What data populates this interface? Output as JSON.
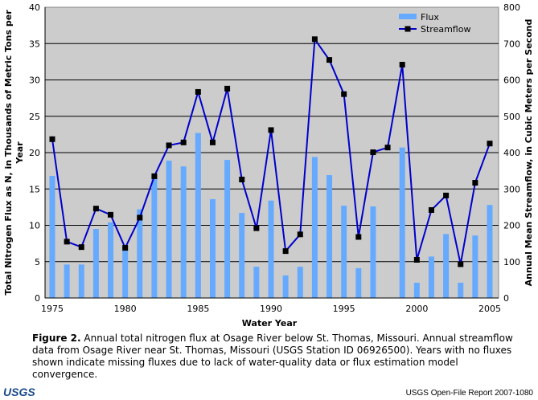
{
  "chart_data": {
    "type": "bar+line",
    "title": "",
    "xlabel": "Water Year",
    "ylabel": "Total Nitrogen Flux as N, in Thousands of Metric Tons per Year",
    "ylabel_right": "Annual Mean Streamflow, in Cubic Meters per Second",
    "ylim": [
      0,
      40
    ],
    "ylim_right": [
      0,
      800
    ],
    "yticks": [
      "0",
      "5",
      "10",
      "15",
      "20",
      "25",
      "30",
      "35",
      "40"
    ],
    "yticks_right": [
      "0",
      "100",
      "200",
      "300",
      "400",
      "500",
      "600",
      "700",
      "800"
    ],
    "xticks": [
      "1975",
      "1980",
      "1985",
      "1990",
      "1995",
      "2000",
      "2005"
    ],
    "legend": {
      "placement": "top-right",
      "entries": [
        "Flux",
        "Streamflow"
      ]
    },
    "x": [
      1975,
      1976,
      1977,
      1978,
      1979,
      1980,
      1981,
      1982,
      1983,
      1984,
      1985,
      1986,
      1987,
      1988,
      1989,
      1990,
      1991,
      1992,
      1993,
      1994,
      1995,
      1996,
      1997,
      1998,
      1999,
      2000,
      2001,
      2002,
      2003,
      2004,
      2005
    ],
    "series": [
      {
        "name": "Flux",
        "axis": "left",
        "type": "bar",
        "color": "#66aaff",
        "values": [
          16.8,
          4.6,
          4.6,
          9.5,
          10.4,
          7.1,
          12.2,
          16.6,
          18.9,
          18.1,
          22.7,
          13.6,
          19.0,
          11.7,
          4.3,
          13.4,
          3.1,
          4.3,
          19.4,
          16.9,
          12.7,
          4.1,
          12.6,
          null,
          20.7,
          2.1,
          5.7,
          8.8,
          2.1,
          8.6,
          12.8
        ]
      },
      {
        "name": "Streamflow",
        "axis": "right",
        "type": "line",
        "color": "#0000cc",
        "values": [
          437,
          155,
          140,
          246,
          229,
          138,
          221,
          335,
          420,
          428,
          567,
          428,
          576,
          326,
          192,
          462,
          129,
          175,
          712,
          655,
          561,
          168,
          401,
          414,
          642,
          105,
          242,
          282,
          93,
          317,
          425
        ]
      }
    ]
  },
  "caption": {
    "label": "Figure 2.",
    "text": " Annual total nitrogen flux at Osage River below St. Thomas, Missouri. Annual streamflow data from Osage River near St. Thomas, Missouri (USGS Station ID 06926500). Years with no fluxes shown indicate missing fluxes due to lack of water-quality data or flux estimation model convergence."
  },
  "footer": {
    "logo": "USGS",
    "report": "USGS Open-File Report 2007-1080"
  }
}
